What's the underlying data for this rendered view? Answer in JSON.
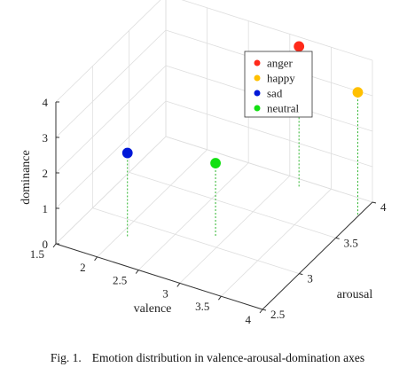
{
  "caption": {
    "label": "Fig. 1.",
    "text": "Emotion distribution in valence-arousal-domination axes"
  },
  "chart_data": {
    "type": "scatter",
    "projection": "3d",
    "grid": true,
    "legend_position": "top-right",
    "xlabel": "valence",
    "ylabel": "arousal",
    "zlabel": "dominance",
    "xlim": [
      1.5,
      4
    ],
    "ylim": [
      2.5,
      4
    ],
    "zlim": [
      0,
      4
    ],
    "x_ticks": [
      "1.5",
      "2",
      "2.5",
      "3",
      "3.5",
      "4"
    ],
    "y_ticks": [
      "2.5",
      "3",
      "3.5",
      "4"
    ],
    "z_ticks": [
      "0",
      "1",
      "2",
      "3",
      "4"
    ],
    "stems": true,
    "series": [
      {
        "name": "anger",
        "color": "#ff2a1a",
        "x": 3.2,
        "y": 3.9,
        "z": 4.0
      },
      {
        "name": "happy",
        "color": "#ffc000",
        "x": 4.0,
        "y": 3.8,
        "z": 3.5
      },
      {
        "name": "sad",
        "color": "#0018d8",
        "x": 2.1,
        "y": 2.8,
        "z": 2.4
      },
      {
        "name": "neutral",
        "color": "#12e012",
        "x": 2.9,
        "y": 3.1,
        "z": 2.1
      }
    ]
  }
}
